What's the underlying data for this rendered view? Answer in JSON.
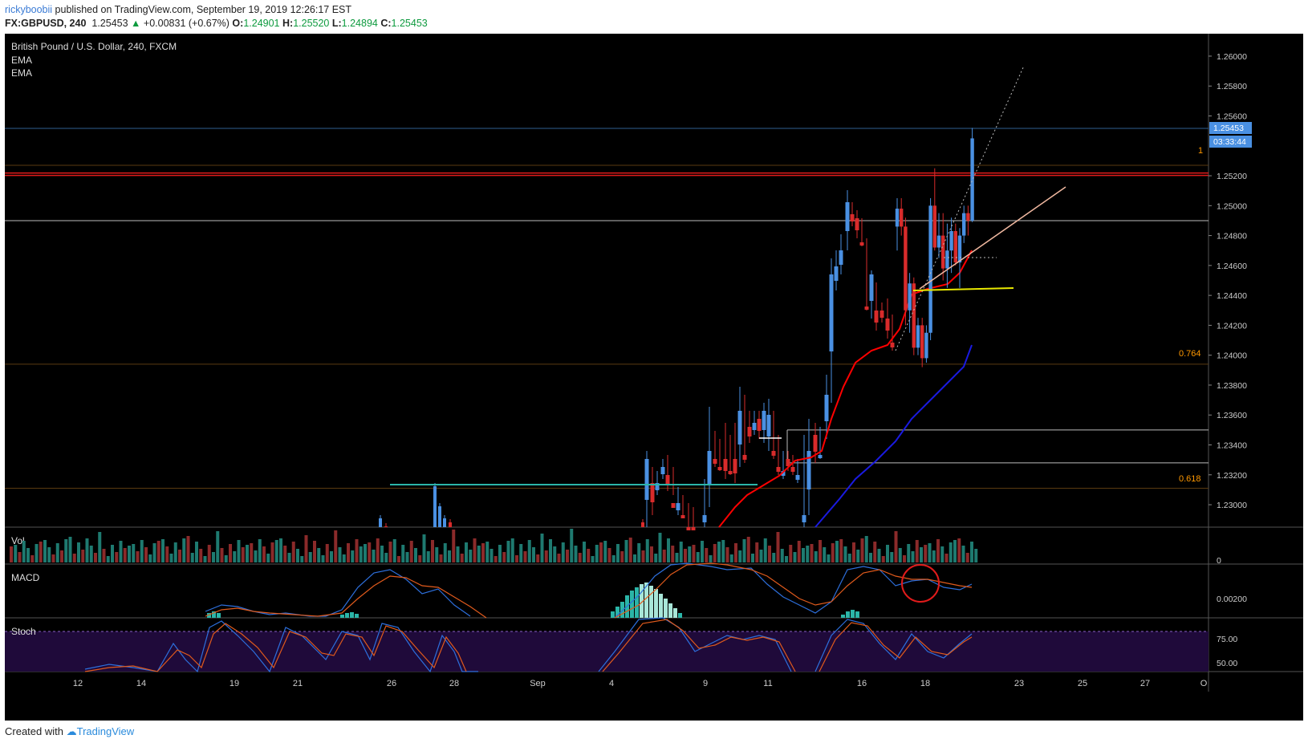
{
  "header": {
    "user": "rickyboobii",
    "published": "published on TradingView.com, September 19, 2019 12:26:17 EST",
    "symbol": "FX:GBPUSD, 240",
    "last": "1.25453",
    "change": "+0.00831 (+0.67%)",
    "o_label": "O:",
    "o_value": "1.24901",
    "h_label": "H:",
    "h_value": "1.25520",
    "l_label": "L:",
    "l_value": "1.24894",
    "c_label": "C:",
    "c_value": "1.25453"
  },
  "legend": {
    "title": "British Pound / U.S. Dollar, 240, FXCM",
    "ema1": "EMA",
    "ema2": "EMA"
  },
  "panes": {
    "vol": "Vol",
    "macd": "MACD",
    "stoch": "Stoch"
  },
  "footer": {
    "created": "Created with",
    "brand": "TradingView"
  },
  "colors": {
    "up": "#4a90e2",
    "down": "#d92b2b",
    "ema_fast": "#ff0000",
    "ema_slow": "#1515d8",
    "fib": "#ff9800",
    "support": "#e8e800",
    "teal": "#2bb5a8",
    "stoch_bg": "#1f0a3a"
  },
  "chart_data": {
    "type": "candlestick",
    "title": "British Pound / U.S. Dollar, 240, FXCM",
    "y_ticks": [
      "1.26000",
      "1.25800",
      "1.25600",
      "1.25200",
      "1.25000",
      "1.24800",
      "1.24600",
      "1.24400",
      "1.24200",
      "1.24000",
      "1.23800",
      "1.23600",
      "1.23400",
      "1.23200",
      "1.23000"
    ],
    "ylim": [
      1.2285,
      1.2615
    ],
    "x_ticks": [
      "12",
      "14",
      "19",
      "21",
      "26",
      "28",
      "Sep",
      "4",
      "9",
      "11",
      "16",
      "18",
      "23",
      "25",
      "27",
      "O"
    ],
    "price_badge": "1.25453",
    "countdown_badge": "03:33:44",
    "fib_levels": [
      {
        "label": "1",
        "price": 1.2527
      },
      {
        "label": "0.764",
        "price": 1.2394
      },
      {
        "label": "0.618",
        "price": 1.2311
      }
    ],
    "horizontal_levels": [
      1.2521,
      1.249,
      1.235,
      1.2328
    ],
    "support_level": 1.244,
    "teal_level": 1.2311,
    "vol_tick": "0",
    "macd_tick": "0.00200",
    "stoch_ticks": [
      "75.00",
      "50.00"
    ],
    "candles": [
      [
        1.2486,
        1.2505,
        1.247,
        1.2498
      ],
      [
        1.2498,
        1.2505,
        1.248,
        1.2486
      ],
      [
        1.2486,
        1.2492,
        1.242,
        1.243
      ],
      [
        1.243,
        1.2455,
        1.2415,
        1.2448
      ],
      [
        1.2448,
        1.2452,
        1.24,
        1.2405
      ],
      [
        1.2405,
        1.2425,
        1.24,
        1.242
      ],
      [
        1.242,
        1.2425,
        1.2392,
        1.2398
      ],
      [
        1.2398,
        1.242,
        1.2395,
        1.2415
      ],
      [
        1.2415,
        1.2505,
        1.241,
        1.25
      ],
      [
        1.25,
        1.2525,
        1.247,
        1.2472
      ],
      [
        1.2472,
        1.2495,
        1.2465,
        1.248
      ],
      [
        1.248,
        1.2495,
        1.245,
        1.2458
      ],
      [
        1.2458,
        1.2488,
        1.2445,
        1.247
      ],
      [
        1.247,
        1.2492,
        1.2455,
        1.2483
      ],
      [
        1.2483,
        1.2488,
        1.246,
        1.2462
      ],
      [
        1.2462,
        1.2485,
        1.2445,
        1.248
      ],
      [
        1.248,
        1.25,
        1.2475,
        1.2495
      ],
      [
        1.2495,
        1.25,
        1.248,
        1.249
      ],
      [
        1.249,
        1.2552,
        1.2489,
        1.2545
      ]
    ]
  }
}
